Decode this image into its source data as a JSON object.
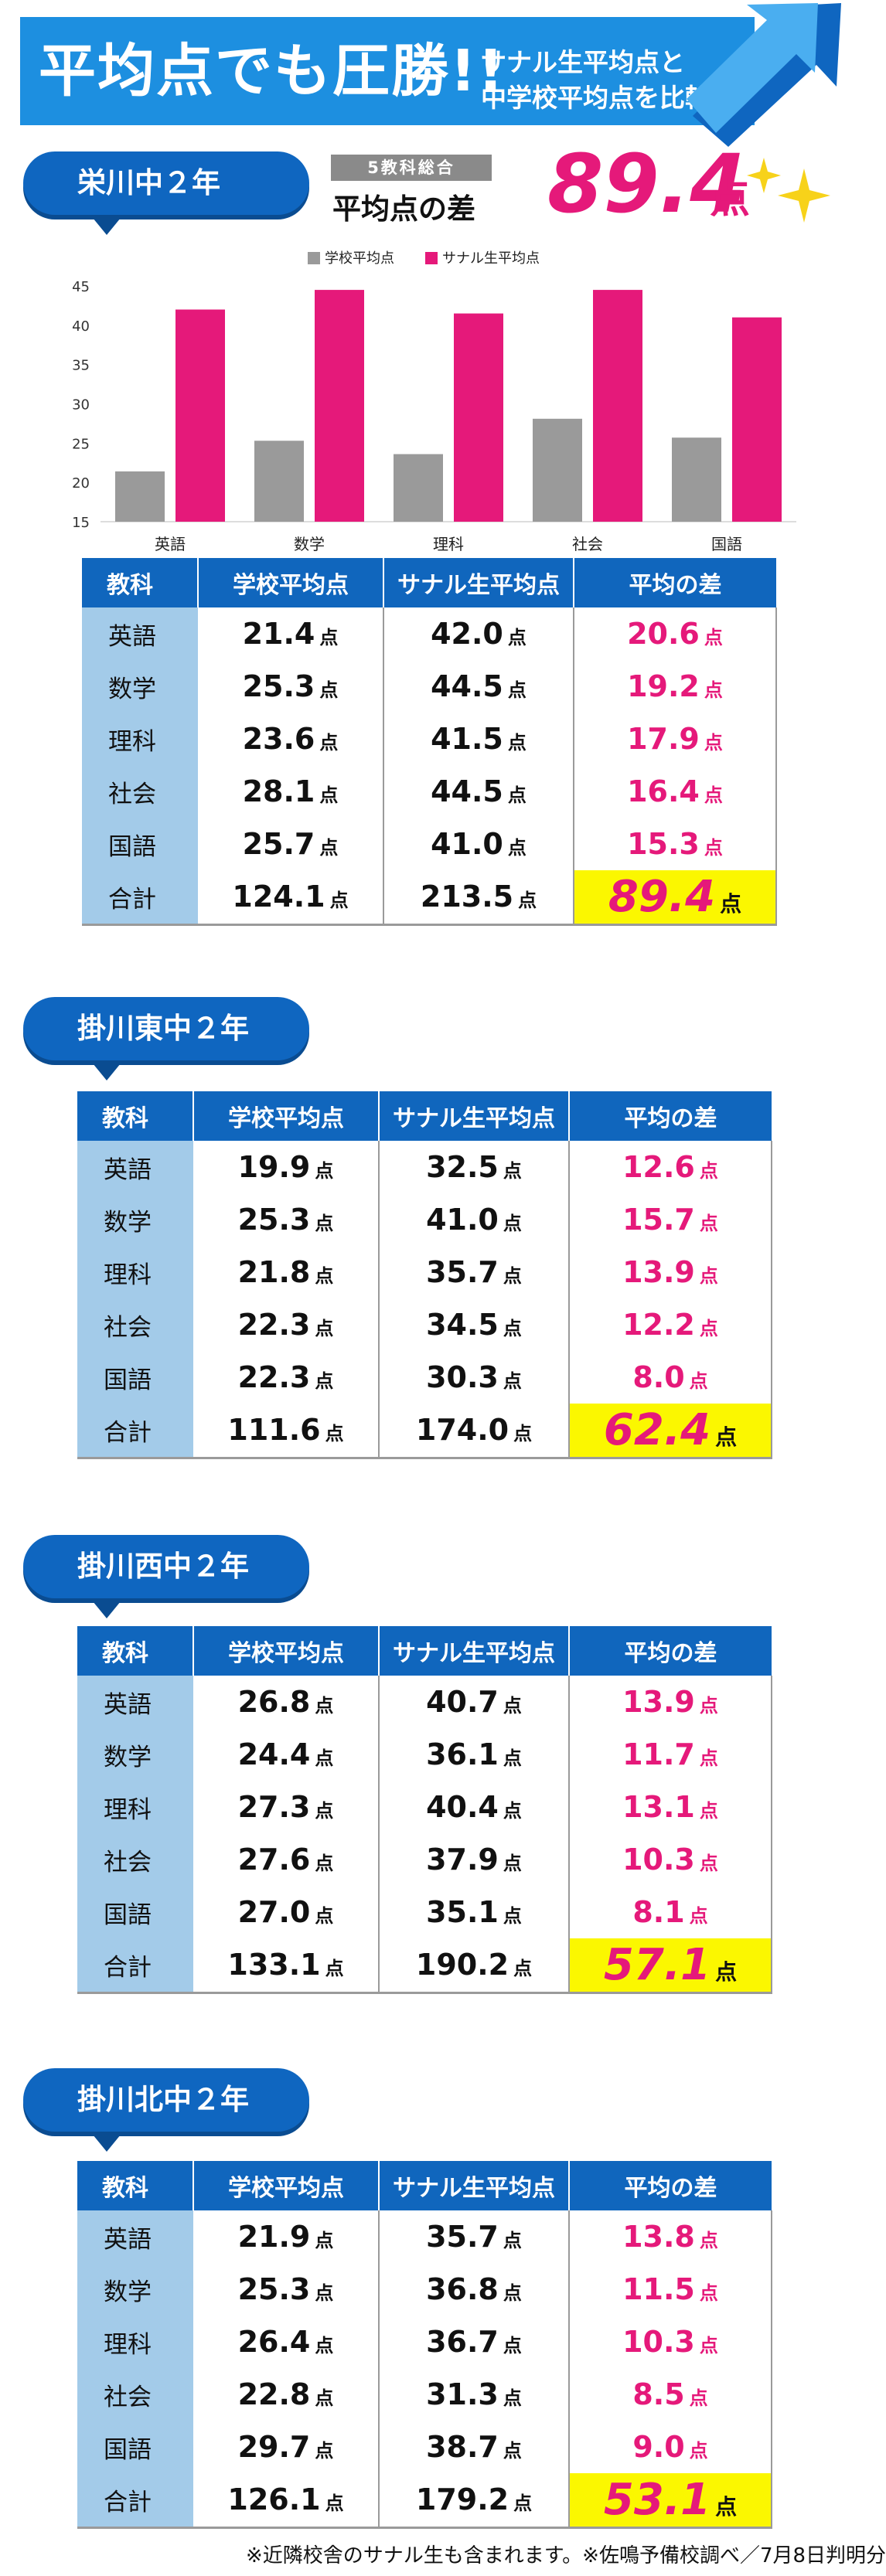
{
  "banner": {
    "title": "平均点でも圧勝!!",
    "subtitle_line1": "サナル生平均点と",
    "subtitle_line2": "中学校平均点を比較"
  },
  "colors": {
    "brand_blue": "#1d8fe0",
    "header_blue": "#1066bd",
    "subject_bg": "#a3cbe9",
    "accent_pink": "#e5197a",
    "school_gray": "#9a9a9a",
    "highlight_yellow": "#fbf700"
  },
  "summary": {
    "tag": "5教科総合",
    "label": "平均点の差",
    "value": "89.4",
    "unit": "点"
  },
  "chart_data": {
    "type": "bar",
    "categories": [
      "英語",
      "数学",
      "理科",
      "社会",
      "国語"
    ],
    "series": [
      {
        "name": "学校平均点",
        "values": [
          21.4,
          25.3,
          23.6,
          28.1,
          25.7
        ],
        "color": "#9a9a9a"
      },
      {
        "name": "サナル生平均点",
        "values": [
          42.0,
          44.5,
          41.5,
          44.5,
          41.0
        ],
        "color": "#e5197a"
      }
    ],
    "ylim": [
      15,
      45
    ],
    "yticks": [
      "15",
      "20",
      "25",
      "30",
      "35",
      "40",
      "45"
    ],
    "grid": false,
    "legend": "top-left"
  },
  "unit": "点",
  "headers": [
    "教科",
    "学校平均点",
    "サナル生平均点",
    "平均の差"
  ],
  "sections": [
    {
      "label": "栄川中２年",
      "rows": [
        {
          "subject": "英語",
          "school": "21.4",
          "sanaru": "42.0",
          "diff": "20.6"
        },
        {
          "subject": "数学",
          "school": "25.3",
          "sanaru": "44.5",
          "diff": "19.2"
        },
        {
          "subject": "理科",
          "school": "23.6",
          "sanaru": "41.5",
          "diff": "17.9"
        },
        {
          "subject": "社会",
          "school": "28.1",
          "sanaru": "44.5",
          "diff": "16.4"
        },
        {
          "subject": "国語",
          "school": "25.7",
          "sanaru": "41.0",
          "diff": "15.3"
        }
      ],
      "total": {
        "subject": "合計",
        "school": "124.1",
        "sanaru": "213.5",
        "diff": "89.4"
      }
    },
    {
      "label": "掛川東中２年",
      "rows": [
        {
          "subject": "英語",
          "school": "19.9",
          "sanaru": "32.5",
          "diff": "12.6"
        },
        {
          "subject": "数学",
          "school": "25.3",
          "sanaru": "41.0",
          "diff": "15.7"
        },
        {
          "subject": "理科",
          "school": "21.8",
          "sanaru": "35.7",
          "diff": "13.9"
        },
        {
          "subject": "社会",
          "school": "22.3",
          "sanaru": "34.5",
          "diff": "12.2"
        },
        {
          "subject": "国語",
          "school": "22.3",
          "sanaru": "30.3",
          "diff": "8.0"
        }
      ],
      "total": {
        "subject": "合計",
        "school": "111.6",
        "sanaru": "174.0",
        "diff": "62.4"
      }
    },
    {
      "label": "掛川西中２年",
      "rows": [
        {
          "subject": "英語",
          "school": "26.8",
          "sanaru": "40.7",
          "diff": "13.9"
        },
        {
          "subject": "数学",
          "school": "24.4",
          "sanaru": "36.1",
          "diff": "11.7"
        },
        {
          "subject": "理科",
          "school": "27.3",
          "sanaru": "40.4",
          "diff": "13.1"
        },
        {
          "subject": "社会",
          "school": "27.6",
          "sanaru": "37.9",
          "diff": "10.3"
        },
        {
          "subject": "国語",
          "school": "27.0",
          "sanaru": "35.1",
          "diff": "8.1"
        }
      ],
      "total": {
        "subject": "合計",
        "school": "133.1",
        "sanaru": "190.2",
        "diff": "57.1"
      }
    },
    {
      "label": "掛川北中２年",
      "rows": [
        {
          "subject": "英語",
          "school": "21.9",
          "sanaru": "35.7",
          "diff": "13.8"
        },
        {
          "subject": "数学",
          "school": "25.3",
          "sanaru": "36.8",
          "diff": "11.5"
        },
        {
          "subject": "理科",
          "school": "26.4",
          "sanaru": "36.7",
          "diff": "10.3"
        },
        {
          "subject": "社会",
          "school": "22.8",
          "sanaru": "31.3",
          "diff": "8.5"
        },
        {
          "subject": "国語",
          "school": "29.7",
          "sanaru": "38.7",
          "diff": "9.0"
        }
      ],
      "total": {
        "subject": "合計",
        "school": "126.1",
        "sanaru": "179.2",
        "diff": "53.1"
      }
    }
  ],
  "footnote": "※近隣校舎のサナル生も含まれます。※佐鳴予備校調べ／7月8日判明分"
}
